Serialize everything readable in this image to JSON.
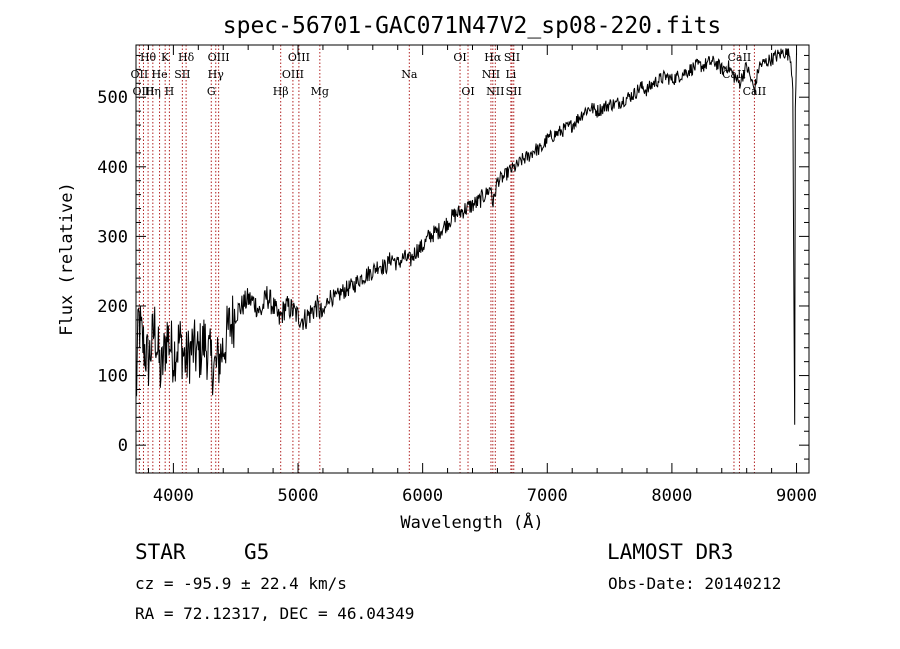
{
  "chart_data": {
    "type": "line",
    "title": "spec-56701-GAC071N47V2_sp08-220.fits",
    "xlabel": "Wavelength (Å)",
    "ylabel": "Flux (relative)",
    "xlim": [
      3700,
      9100
    ],
    "ylim": [
      -40,
      575
    ],
    "xticks": [
      4000,
      5000,
      6000,
      7000,
      8000,
      9000
    ],
    "xtick_labels": [
      "4000",
      "5000",
      "6000",
      "7000",
      "8000",
      "9000"
    ],
    "yticks": [
      0,
      100,
      200,
      300,
      400,
      500
    ],
    "ytick_labels": [
      "0",
      "100",
      "200",
      "300",
      "400",
      "500"
    ],
    "series": [
      {
        "name": "spectrum",
        "x": [
          3700,
          3720,
          3750,
          3800,
          3850,
          3900,
          3950,
          4000,
          4050,
          4100,
          4150,
          4200,
          4250,
          4300,
          4340,
          4400,
          4450,
          4500,
          4550,
          4600,
          4650,
          4700,
          4750,
          4800,
          4850,
          4900,
          4950,
          5000,
          5050,
          5100,
          5150,
          5200,
          5250,
          5300,
          5350,
          5400,
          5450,
          5500,
          5550,
          5600,
          5650,
          5700,
          5750,
          5800,
          5850,
          5900,
          5950,
          6000,
          6050,
          6100,
          6150,
          6200,
          6250,
          6300,
          6350,
          6400,
          6450,
          6500,
          6550,
          6563,
          6600,
          6650,
          6700,
          6750,
          6800,
          6850,
          6900,
          6950,
          7000,
          7050,
          7100,
          7150,
          7200,
          7250,
          7300,
          7350,
          7400,
          7450,
          7500,
          7550,
          7600,
          7650,
          7700,
          7750,
          7800,
          7850,
          7900,
          7950,
          8000,
          8050,
          8100,
          8150,
          8200,
          8250,
          8300,
          8350,
          8400,
          8450,
          8498,
          8542,
          8600,
          8662,
          8700,
          8750,
          8800,
          8850,
          8900,
          8950,
          8970,
          8985,
          8990,
          9000
        ],
        "y": [
          60,
          180,
          150,
          120,
          170,
          100,
          160,
          130,
          150,
          120,
          140,
          130,
          150,
          120,
          110,
          140,
          170,
          190,
          200,
          210,
          205,
          190,
          215,
          200,
          180,
          200,
          195,
          185,
          180,
          190,
          200,
          185,
          215,
          210,
          220,
          225,
          230,
          240,
          245,
          250,
          260,
          255,
          270,
          260,
          270,
          265,
          280,
          285,
          300,
          305,
          310,
          320,
          330,
          335,
          340,
          345,
          350,
          360,
          370,
          345,
          380,
          385,
          395,
          400,
          410,
          415,
          425,
          425,
          440,
          445,
          450,
          455,
          460,
          470,
          480,
          485,
          480,
          485,
          490,
          490,
          495,
          500,
          505,
          515,
          510,
          520,
          525,
          530,
          525,
          530,
          535,
          540,
          545,
          545,
          550,
          550,
          540,
          545,
          530,
          520,
          545,
          510,
          545,
          550,
          555,
          560,
          565,
          560,
          520,
          20,
          480,
          560
        ]
      }
    ],
    "spectral_lines": [
      {
        "name": "Hθ",
        "wavelength": 3797,
        "row": 1
      },
      {
        "name": "K",
        "wavelength": 3934,
        "row": 1
      },
      {
        "name": "Hδ",
        "wavelength": 4102,
        "row": 1
      },
      {
        "name": "OIII",
        "wavelength": 4363,
        "row": 1
      },
      {
        "name": "OIII",
        "wavelength": 5007,
        "row": 1
      },
      {
        "name": "OI",
        "wavelength": 6300,
        "row": 1
      },
      {
        "name": "Hα",
        "wavelength": 6563,
        "row": 1
      },
      {
        "name": "SII",
        "wavelength": 6717,
        "row": 1
      },
      {
        "name": "CaII",
        "wavelength": 8542,
        "row": 1
      },
      {
        "name": "OII",
        "wavelength": 3727,
        "row": 2
      },
      {
        "name": "He",
        "wavelength": 3889,
        "row": 2
      },
      {
        "name": "SII",
        "wavelength": 4072,
        "row": 2
      },
      {
        "name": "Hγ",
        "wavelength": 4340,
        "row": 2
      },
      {
        "name": "OIII",
        "wavelength": 4959,
        "row": 2
      },
      {
        "name": "Na",
        "wavelength": 5893,
        "row": 2
      },
      {
        "name": "NII",
        "wavelength": 6548,
        "row": 2
      },
      {
        "name": "Li",
        "wavelength": 6708,
        "row": 2
      },
      {
        "name": "CaII",
        "wavelength": 8498,
        "row": 2
      },
      {
        "name": "OIII",
        "wavelength": 3760,
        "row": 3
      },
      {
        "name": "Hη",
        "wavelength": 3835,
        "row": 3
      },
      {
        "name": "H",
        "wavelength": 3968,
        "row": 3
      },
      {
        "name": "G",
        "wavelength": 4304,
        "row": 3
      },
      {
        "name": "Hβ",
        "wavelength": 4861,
        "row": 3
      },
      {
        "name": "Mg",
        "wavelength": 5175,
        "row": 3
      },
      {
        "name": "OI",
        "wavelength": 6364,
        "row": 3
      },
      {
        "name": "NII",
        "wavelength": 6583,
        "row": 3
      },
      {
        "name": "SII",
        "wavelength": 6731,
        "row": 3
      },
      {
        "name": "CaII",
        "wavelength": 8662,
        "row": 3
      }
    ]
  },
  "info": {
    "object_type": "STAR",
    "subclass": "G5",
    "survey": "LAMOST DR3",
    "redshift_text": "cz = -95.9 ± 22.4 km/s",
    "obs_date_text": "Obs-Date: 20140212",
    "coords_text": "RA =  72.12317, DEC =  46.04349"
  },
  "colors": {
    "axis": "#000000",
    "spectrum": "#000000",
    "line_marker": "#b22222"
  }
}
